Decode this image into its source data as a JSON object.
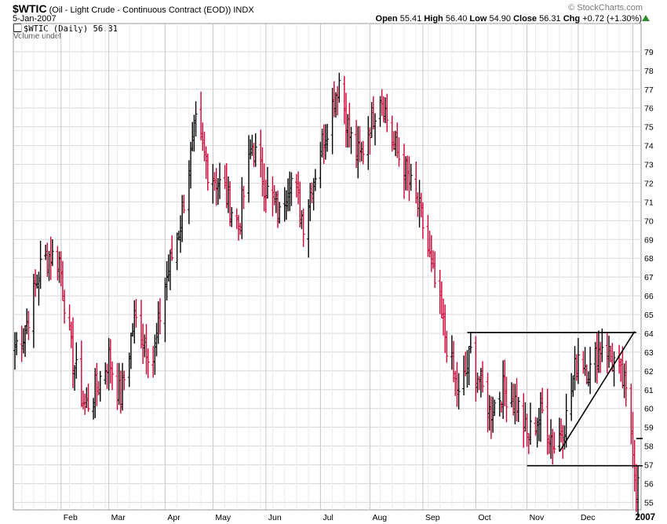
{
  "header": {
    "symbol": "$WTIC",
    "description": "(Oil - Light Crude - Continuous Contract (EOD))",
    "exchange": "INDX",
    "date": "5-Jan-2007",
    "brand": "© StockCharts.com",
    "open_label": "Open",
    "open": "55.41",
    "high_label": "High",
    "high": "56.40",
    "low_label": "Low",
    "low": "54.90",
    "close_label": "Close",
    "close": "56.31",
    "chg_label": "Chg",
    "chg": "+0.72 (+1.30%)"
  },
  "legend": {
    "price": "$WTIC (Daily) 56.31",
    "volume": "Volume undef"
  },
  "colors": {
    "up": "#000000",
    "down": "#cc0033",
    "grid": "#d8d8d8",
    "chg_arrow": "#2e8b2e"
  },
  "chart_data": {
    "type": "ohlc",
    "y_ticks": [
      55,
      56,
      57,
      58,
      59,
      60,
      61,
      62,
      63,
      64,
      65,
      66,
      67,
      68,
      69,
      70,
      71,
      72,
      73,
      74,
      75,
      76,
      77,
      78,
      79
    ],
    "ylim": [
      54.6,
      80.5
    ],
    "x_range": [
      "2006-01-05",
      "2007-01-05"
    ],
    "x_ticks": [
      {
        "label": "Feb",
        "date": "2006-02-01"
      },
      {
        "label": "Mar",
        "date": "2006-03-01"
      },
      {
        "label": "Apr",
        "date": "2006-04-03"
      },
      {
        "label": "May",
        "date": "2006-05-01"
      },
      {
        "label": "Jun",
        "date": "2006-06-01"
      },
      {
        "label": "Jul",
        "date": "2006-07-03"
      },
      {
        "label": "Aug",
        "date": "2006-08-01"
      },
      {
        "label": "Sep",
        "date": "2006-09-01"
      },
      {
        "label": "Oct",
        "date": "2006-10-02"
      },
      {
        "label": "Nov",
        "date": "2006-11-01"
      },
      {
        "label": "Dec",
        "date": "2006-12-01"
      },
      {
        "label": "2007",
        "date": "2007-01-02",
        "bold": true
      }
    ],
    "close_waypoints": [
      [
        "2006-01-05",
        63.4
      ],
      [
        "2006-01-10",
        63.9
      ],
      [
        "2006-01-20",
        67.5
      ],
      [
        "2006-01-25",
        68.2
      ],
      [
        "2006-01-31",
        67.9
      ],
      [
        "2006-02-07",
        63.0
      ],
      [
        "2006-02-15",
        60.0
      ],
      [
        "2006-02-21",
        61.0
      ],
      [
        "2006-03-01",
        62.7
      ],
      [
        "2006-03-08",
        60.5
      ],
      [
        "2006-03-16",
        64.8
      ],
      [
        "2006-03-27",
        62.6
      ],
      [
        "2006-04-03",
        66.7
      ],
      [
        "2006-04-11",
        69.5
      ],
      [
        "2006-04-21",
        75.0
      ],
      [
        "2006-04-28",
        72.8
      ],
      [
        "2006-05-08",
        71.5
      ],
      [
        "2006-05-16",
        69.8
      ],
      [
        "2006-05-24",
        74.0
      ],
      [
        "2006-06-02",
        71.5
      ],
      [
        "2006-06-09",
        70.2
      ],
      [
        "2006-06-15",
        72.5
      ],
      [
        "2006-06-23",
        70.0
      ],
      [
        "2006-07-03",
        73.8
      ],
      [
        "2006-07-14",
        77.5
      ],
      [
        "2006-07-20",
        74.5
      ],
      [
        "2006-07-26",
        73.3
      ],
      [
        "2006-08-07",
        76.9
      ],
      [
        "2006-08-15",
        74.0
      ],
      [
        "2006-08-21",
        72.8
      ],
      [
        "2006-08-31",
        70.2
      ],
      [
        "2006-09-06",
        67.5
      ],
      [
        "2006-09-14",
        63.9
      ],
      [
        "2006-09-22",
        60.5
      ],
      [
        "2006-09-29",
        62.9
      ],
      [
        "2006-10-10",
        59.8
      ],
      [
        "2006-10-18",
        61.0
      ],
      [
        "2006-10-26",
        60.3
      ],
      [
        "2006-11-01",
        58.5
      ],
      [
        "2006-11-10",
        59.8
      ],
      [
        "2006-11-17",
        58.0
      ],
      [
        "2006-11-24",
        59.5
      ],
      [
        "2006-12-01",
        63.0
      ],
      [
        "2006-12-08",
        62.0
      ],
      [
        "2006-12-15",
        63.5
      ],
      [
        "2006-12-22",
        62.5
      ],
      [
        "2006-12-28",
        61.2
      ],
      [
        "2007-01-02",
        58.2
      ],
      [
        "2007-01-04",
        55.6
      ],
      [
        "2007-01-05",
        56.31
      ]
    ],
    "trend_lines": [
      {
        "from": [
          "2006-09-27",
          64.05
        ],
        "to": [
          "2007-01-04",
          64.05
        ]
      },
      {
        "from": [
          "2006-11-01",
          56.95
        ],
        "to": [
          "2007-01-05",
          56.95
        ]
      },
      {
        "from": [
          "2006-11-20",
          57.7
        ],
        "to": [
          "2007-01-03",
          64.1
        ]
      },
      {
        "from": [
          "2007-01-04",
          58.4
        ],
        "to": [
          "2007-01-05",
          58.4
        ]
      }
    ]
  }
}
